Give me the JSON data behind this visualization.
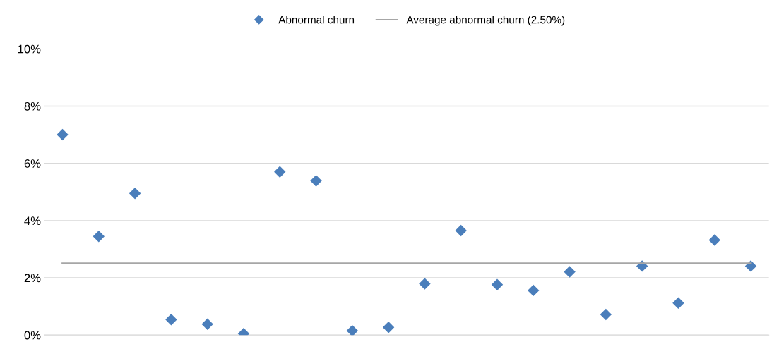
{
  "chart_data": {
    "type": "scatter",
    "categories": [
      null,
      null,
      null,
      null,
      null,
      null,
      null,
      null,
      null,
      null,
      null,
      null,
      null,
      null,
      null,
      null,
      null,
      null,
      null,
      null
    ],
    "series": [
      {
        "name": "Abnormal churn",
        "color": "#4a7ebb",
        "marker": "diamond",
        "values": [
          7.0,
          3.45,
          4.95,
          0.54,
          0.38,
          0.05,
          5.7,
          5.39,
          0.15,
          0.27,
          1.79,
          3.65,
          1.76,
          1.56,
          2.21,
          0.72,
          2.41,
          1.12,
          3.32,
          2.41
        ]
      },
      {
        "name": "Average abnormal churn (2.50%)",
        "type": "line",
        "color": "#a6a6a6",
        "marker": "none",
        "line_style": "solid",
        "values": [
          2.5,
          2.5,
          2.5,
          2.5,
          2.5,
          2.5,
          2.5,
          2.5,
          2.5,
          2.5,
          2.5,
          2.5,
          2.5,
          2.5,
          2.5,
          2.5,
          2.5,
          2.5,
          2.5,
          2.5
        ]
      }
    ],
    "ylim": [
      0,
      10
    ],
    "yticks": [
      {
        "value": 0,
        "label": "0%"
      },
      {
        "value": 2,
        "label": "2%"
      },
      {
        "value": 4,
        "label": "4%"
      },
      {
        "value": 6,
        "label": "6%"
      },
      {
        "value": 8,
        "label": "8%"
      },
      {
        "value": 10,
        "label": "10%"
      }
    ],
    "grid": "y",
    "legend": "top",
    "tick_labels": "y"
  }
}
